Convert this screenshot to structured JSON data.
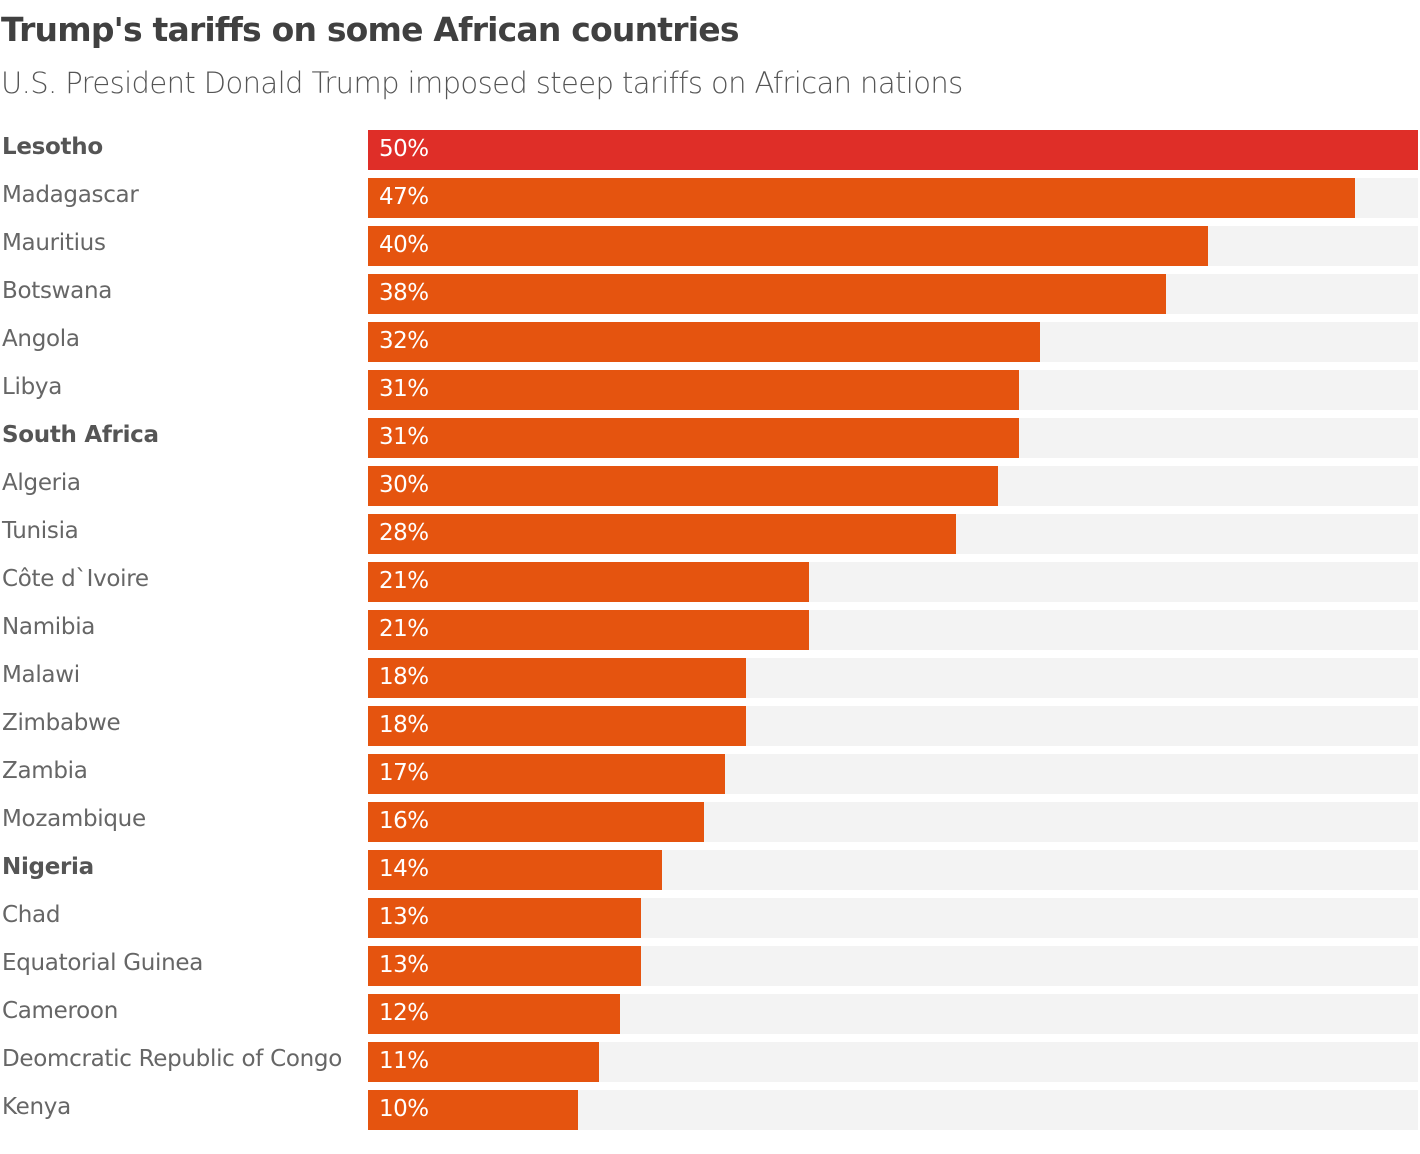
{
  "title": "Trump's tariffs on some African countries",
  "subtitle": "U.S. President Donald Trump imposed steep tariffs on African nations",
  "colors": {
    "highlight": "#df2e28",
    "bar": "#e5540f",
    "track": "#f3f3f3"
  },
  "chart_data": {
    "type": "bar",
    "orientation": "horizontal",
    "title": "Trump's tariffs on some African countries",
    "subtitle": "U.S. President Donald Trump imposed steep tariffs on African nations",
    "xlim": [
      0,
      50
    ],
    "unit": "%",
    "categories": [
      "Lesotho",
      "Madagascar",
      "Mauritius",
      "Botswana",
      "Angola",
      "Libya",
      "South Africa",
      "Algeria",
      "Tunisia",
      "Côte d`Ivoire",
      "Namibia",
      "Malawi",
      "Zimbabwe",
      "Zambia",
      "Mozambique",
      "Nigeria",
      "Chad",
      "Equatorial Guinea",
      "Cameroon",
      "Deomcratic Republic of Congo",
      "Kenya"
    ],
    "values": [
      50,
      47,
      40,
      38,
      32,
      31,
      31,
      30,
      28,
      21,
      21,
      18,
      18,
      17,
      16,
      14,
      13,
      13,
      12,
      11,
      10
    ],
    "labels": [
      "50%",
      "47%",
      "40%",
      "38%",
      "32%",
      "31%",
      "31%",
      "30%",
      "28%",
      "21%",
      "21%",
      "18%",
      "18%",
      "17%",
      "16%",
      "14%",
      "13%",
      "13%",
      "12%",
      "11%",
      "10%"
    ],
    "bold_categories": [
      "Lesotho",
      "South Africa",
      "Nigeria"
    ],
    "highlighted": [
      "Lesotho"
    ]
  }
}
